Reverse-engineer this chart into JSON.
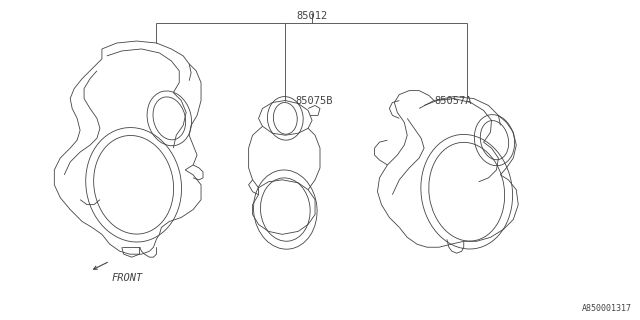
{
  "bg_color": "#ffffff",
  "line_color": "#444444",
  "label_85012": "85012",
  "label_85075B": "85075B",
  "label_85057A": "85057A",
  "label_front": "FRONT",
  "label_ref": "A850001317",
  "fig_width": 6.4,
  "fig_height": 3.2,
  "dpi": 100,
  "lw": 0.6
}
